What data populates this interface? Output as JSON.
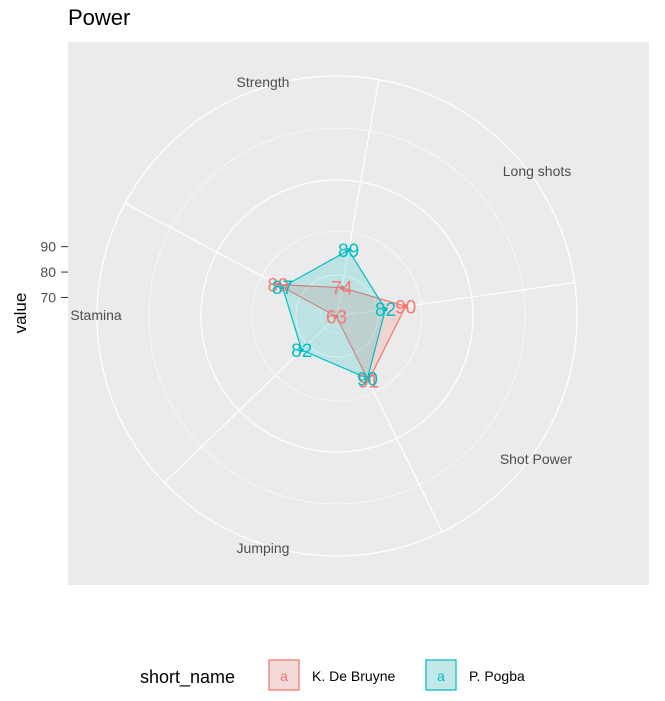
{
  "chart_data": {
    "type": "radar",
    "title": "Power",
    "ylabel": "value",
    "xlabel": "",
    "y_ticks": [
      70,
      80,
      90
    ],
    "categories": [
      "Strength",
      "Long shots",
      "Shot Power",
      "Jumping",
      "Stamina"
    ],
    "series": [
      {
        "name": "K. De Bruyne",
        "color": "#F8766D",
        "fill": "rgba(248,118,109,0.2)",
        "values": [
          74,
          90,
          91,
          63,
          89
        ]
      },
      {
        "name": "P. Pogba",
        "color": "#00BFC4",
        "fill": "rgba(0,191,196,0.2)",
        "values": [
          89,
          82,
          90,
          82,
          87
        ]
      }
    ],
    "legend": {
      "title": "short_name",
      "position": "bottom",
      "key_glyph": "a"
    },
    "panel_background": "#EBEBEB",
    "grid_color": "#FFFFFF"
  }
}
